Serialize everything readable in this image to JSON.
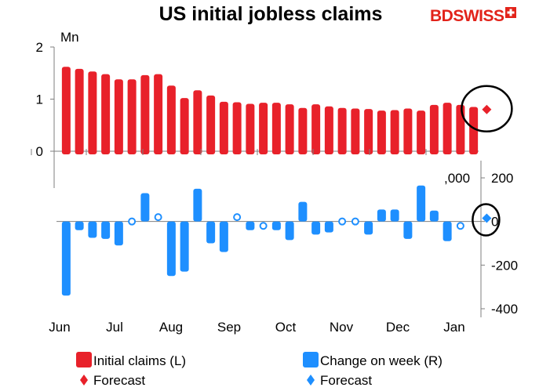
{
  "title": "US initial jobless claims",
  "brand": {
    "part1": "BD",
    "part2": "SWISS"
  },
  "colors": {
    "claims": "#e8212a",
    "change": "#1e8fff",
    "axis": "#7f7f7f"
  },
  "chart_data": [
    {
      "type": "bar",
      "series": [
        {
          "name": "Initial claims (L)",
          "values": [
            1.62,
            1.58,
            1.53,
            1.48,
            1.38,
            1.38,
            1.46,
            1.48,
            1.26,
            1.02,
            1.17,
            1.07,
            0.95,
            0.94,
            0.91,
            0.93,
            0.93,
            0.9,
            0.83,
            0.9,
            0.86,
            0.83,
            0.82,
            0.81,
            0.78,
            0.79,
            0.82,
            0.78,
            0.89,
            0.93,
            0.89,
            0.85
          ]
        },
        {
          "name": "Forecast",
          "values": [
            0.8
          ]
        }
      ],
      "ylabel": "Mn",
      "y_ticks": [
        "0",
        "1",
        "2"
      ],
      "ylim": [
        0,
        2
      ]
    },
    {
      "type": "bar",
      "series": [
        {
          "name": "Change on week (R)",
          "values": [
            -340,
            -40,
            -75,
            -80,
            -110,
            0,
            130,
            20,
            -250,
            -230,
            150,
            -100,
            -140,
            20,
            -40,
            -20,
            -40,
            -85,
            90,
            -60,
            -50,
            0,
            0,
            -60,
            55,
            55,
            -80,
            165,
            50,
            -90,
            -20
          ]
        },
        {
          "name": "Forecast",
          "values": [
            15
          ]
        }
      ],
      "ylabel": ",000",
      "y_ticks": [
        "-400",
        "-200",
        "0",
        "200"
      ],
      "ylim": [
        -400,
        200
      ]
    }
  ],
  "x_ticks": [
    "Jun",
    "Jul",
    "Aug",
    "Sep",
    "Oct",
    "Nov",
    "Dec",
    "Jan"
  ],
  "legend": [
    {
      "label": "Initial claims (L)"
    },
    {
      "label": "Change on week (R)"
    },
    {
      "label": "Forecast"
    },
    {
      "label": "Forecast"
    }
  ]
}
